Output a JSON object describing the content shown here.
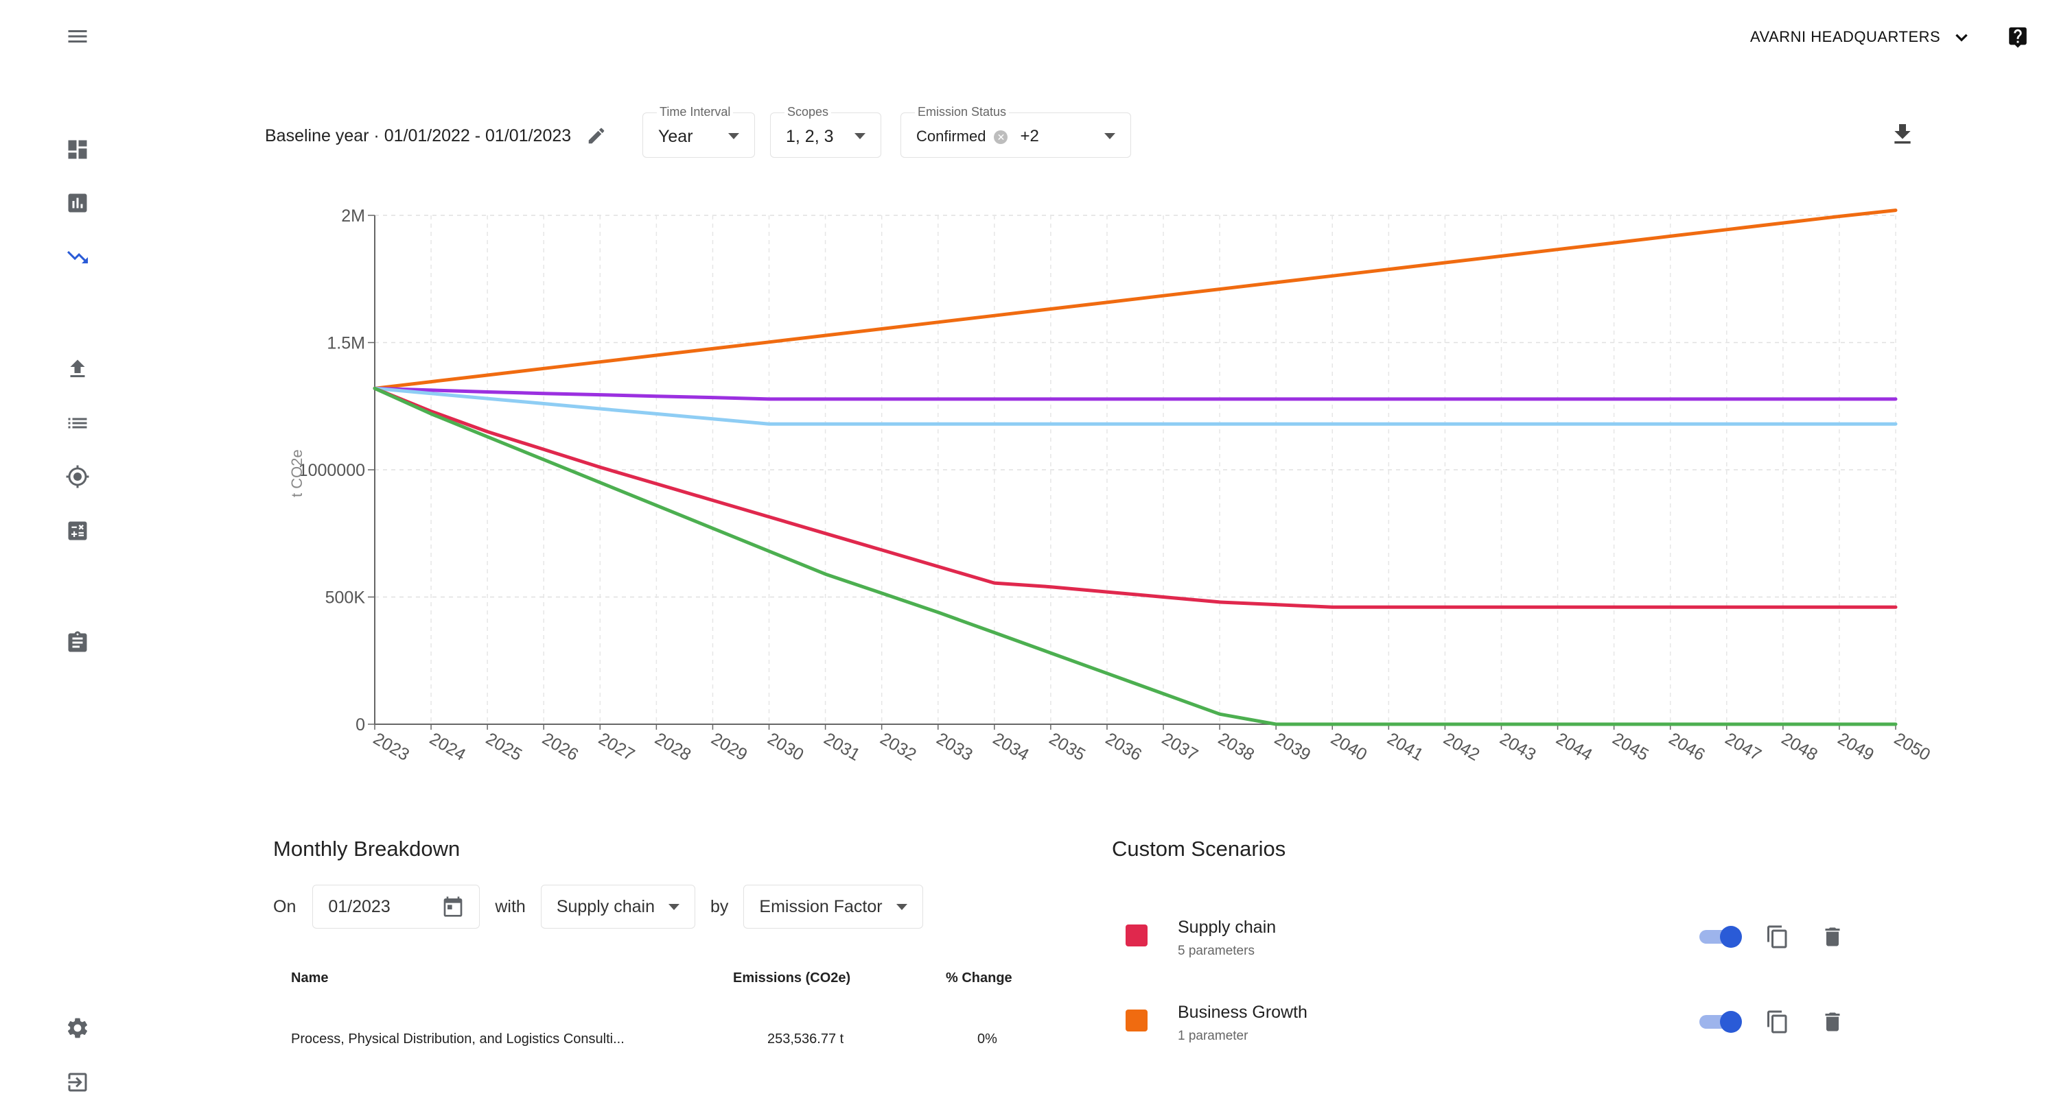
{
  "header": {
    "org_name": "AVARNI HEADQUARTERS"
  },
  "filters": {
    "baseline_text": "Baseline year · 01/01/2022 - 01/01/2023",
    "time_interval": {
      "label": "Time Interval",
      "value": "Year"
    },
    "scopes": {
      "label": "Scopes",
      "value": "1, 2, 3"
    },
    "emission_status": {
      "label": "Emission Status",
      "chip": "Confirmed",
      "more": "+2"
    }
  },
  "chart_data": {
    "type": "line",
    "ylabel": "t CO2e",
    "ylim": [
      0,
      2000000
    ],
    "y_ticks": [
      "0",
      "500K",
      "1000000",
      "1.5M",
      "2M"
    ],
    "y_tick_values": [
      0,
      500000,
      1000000,
      1500000,
      2000000
    ],
    "x": [
      "2023",
      "2024",
      "2025",
      "2026",
      "2027",
      "2028",
      "2029",
      "2030",
      "2031",
      "2032",
      "2033",
      "2034",
      "2035",
      "2036",
      "2037",
      "2038",
      "2039",
      "2040",
      "2041",
      "2042",
      "2043",
      "2044",
      "2045",
      "2046",
      "2047",
      "2048",
      "2049",
      "2050"
    ],
    "series": [
      {
        "color": "#f06b10",
        "values": [
          1320000,
          1346000,
          1372000,
          1398000,
          1424000,
          1450000,
          1476000,
          1502000,
          1528000,
          1554000,
          1580000,
          1606000,
          1632000,
          1658000,
          1684000,
          1710000,
          1736000,
          1762000,
          1788000,
          1814000,
          1840000,
          1866000,
          1892000,
          1918000,
          1944000,
          1970000,
          1996000,
          2020000
        ]
      },
      {
        "color": "#9b30e0",
        "values": [
          1320000,
          1313000,
          1306000,
          1300000,
          1295000,
          1289000,
          1284000,
          1278000,
          1278000,
          1278000,
          1278000,
          1278000,
          1278000,
          1278000,
          1278000,
          1278000,
          1278000,
          1278000,
          1278000,
          1278000,
          1278000,
          1278000,
          1278000,
          1278000,
          1278000,
          1278000,
          1278000,
          1278000
        ]
      },
      {
        "color": "#8ecdf4",
        "values": [
          1320000,
          1300000,
          1280000,
          1260000,
          1240000,
          1220000,
          1200000,
          1180000,
          1180000,
          1180000,
          1180000,
          1180000,
          1180000,
          1180000,
          1180000,
          1180000,
          1180000,
          1180000,
          1180000,
          1180000,
          1180000,
          1180000,
          1180000,
          1180000,
          1180000,
          1180000,
          1180000,
          1180000
        ]
      },
      {
        "color": "#e0284d",
        "values": [
          1320000,
          1230000,
          1150000,
          1080000,
          1010000,
          945000,
          880000,
          815000,
          750000,
          685000,
          620000,
          555000,
          540000,
          520000,
          500000,
          480000,
          470000,
          460000,
          460000,
          460000,
          460000,
          460000,
          460000,
          460000,
          460000,
          460000,
          460000,
          460000
        ]
      },
      {
        "color": "#4caf50",
        "values": [
          1320000,
          1220000,
          1130000,
          1040000,
          950000,
          860000,
          770000,
          680000,
          590000,
          515000,
          440000,
          360000,
          280000,
          200000,
          120000,
          40000,
          0,
          0,
          0,
          0,
          0,
          0,
          0,
          0,
          0,
          0,
          0,
          0
        ]
      }
    ]
  },
  "breakdown": {
    "title": "Monthly Breakdown",
    "on_label": "On",
    "date_value": "01/2023",
    "with_label": "with",
    "scenario_value": "Supply chain",
    "by_label": "by",
    "factor_value": "Emission Factor",
    "columns": [
      "Name",
      "Emissions (CO2e)",
      "% Change"
    ],
    "rows": [
      {
        "name": "Process, Physical Distribution, and Logistics Consulti...",
        "emissions": "253,536.77 t",
        "change": "0%"
      }
    ]
  },
  "scenarios": {
    "title": "Custom Scenarios",
    "items": [
      {
        "name": "Supply chain",
        "sub": "5 parameters",
        "color": "#e0284d"
      },
      {
        "name": "Business Growth",
        "sub": "1 parameter",
        "color": "#f06b10"
      }
    ]
  }
}
